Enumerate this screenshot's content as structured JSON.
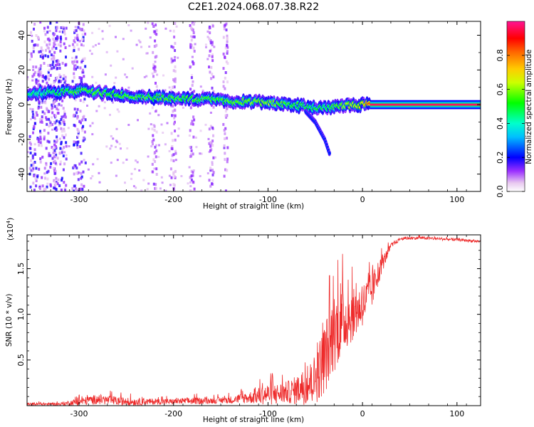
{
  "figure_title": "C2E1.2024.068.07.38.R22",
  "chart_data": [
    {
      "type": "heatmap",
      "title": "C2E1.2024.068.07.38.R22",
      "xlabel": "Height of straight line (km)",
      "ylabel": "Frequency (Hz)",
      "xlim": [
        -355,
        125
      ],
      "ylim": [
        -50,
        48
      ],
      "x_ticks": [
        -300,
        -200,
        -100,
        0,
        100
      ],
      "y_ticks": [
        -40,
        -20,
        0,
        20,
        40
      ],
      "colorbar": {
        "label": "Normalized spectral amplitude",
        "range": [
          0.0,
          1.0
        ],
        "ticks": [
          0.0,
          0.2,
          0.4,
          0.6,
          0.8
        ],
        "tick_labels": [
          "0.0",
          "0.2",
          "0.4",
          "0.6",
          "0.8"
        ],
        "colormap": [
          "#e8c8f0",
          "#9b30ff",
          "#0000ff",
          "#00e5ff",
          "#00ff00",
          "#ffff00",
          "#ff7f00",
          "#ff0000",
          "#ff1493"
        ]
      },
      "ridge": {
        "x": [
          -355,
          -340,
          -320,
          -300,
          -280,
          -260,
          -240,
          -220,
          -200,
          -180,
          -160,
          -140,
          -120,
          -100,
          -80,
          -60,
          -40,
          -20,
          0,
          10,
          125
        ],
        "frequency": [
          6,
          7,
          7,
          8,
          7,
          6,
          5,
          4,
          4,
          3,
          3,
          2,
          2,
          1,
          0,
          -1,
          -2,
          -1,
          0,
          0,
          0
        ],
        "amplitude": [
          0.45,
          0.45,
          0.5,
          0.55,
          0.55,
          0.55,
          0.55,
          0.55,
          0.55,
          0.55,
          0.55,
          0.55,
          0.6,
          0.6,
          0.55,
          0.5,
          0.5,
          0.6,
          0.7,
          0.9,
          0.95
        ]
      },
      "branch": {
        "x": [
          -60,
          -50,
          -40,
          -35
        ],
        "frequency": [
          -4,
          -10,
          -20,
          -28
        ]
      },
      "noise_columns_x": [
        -345,
        -330,
        -320,
        -300,
        -220,
        -200,
        -180,
        -160,
        -145
      ]
    },
    {
      "type": "line",
      "xlabel": "Height of straight line (km)",
      "ylabel": "SNR (10 * v/v)",
      "y_multiplier_label": "(x10",
      "y_multiplier_exp": "4",
      "xlim": [
        -355,
        125
      ],
      "ylim": [
        0,
        1.87
      ],
      "x_ticks": [
        -300,
        -200,
        -100,
        0,
        100
      ],
      "y_ticks": [
        0.5,
        1.0,
        1.5
      ],
      "y_tick_labels": [
        "0.5",
        "1.0",
        "1.5"
      ],
      "color": "#ee2a2a",
      "x": [
        -355,
        -320,
        -300,
        -280,
        -260,
        -240,
        -220,
        -200,
        -180,
        -160,
        -140,
        -120,
        -100,
        -90,
        -80,
        -70,
        -60,
        -50,
        -40,
        -30,
        -20,
        -10,
        0,
        10,
        20,
        30,
        40,
        60,
        80,
        100,
        125
      ],
      "y": [
        0.02,
        0.02,
        0.05,
        0.08,
        0.06,
        0.05,
        0.05,
        0.05,
        0.06,
        0.06,
        0.07,
        0.1,
        0.15,
        0.15,
        0.17,
        0.2,
        0.25,
        0.35,
        0.6,
        0.9,
        1.0,
        1.05,
        1.15,
        1.3,
        1.55,
        1.75,
        1.83,
        1.84,
        1.83,
        1.82,
        1.8
      ],
      "y_spread": [
        0.02,
        0.02,
        0.05,
        0.07,
        0.06,
        0.05,
        0.04,
        0.04,
        0.05,
        0.04,
        0.05,
        0.08,
        0.15,
        0.15,
        0.15,
        0.2,
        0.25,
        0.35,
        0.5,
        0.55,
        0.45,
        0.35,
        0.3,
        0.25,
        0.12,
        0.04,
        0.02,
        0.02,
        0.02,
        0.02,
        0.02
      ]
    }
  ]
}
